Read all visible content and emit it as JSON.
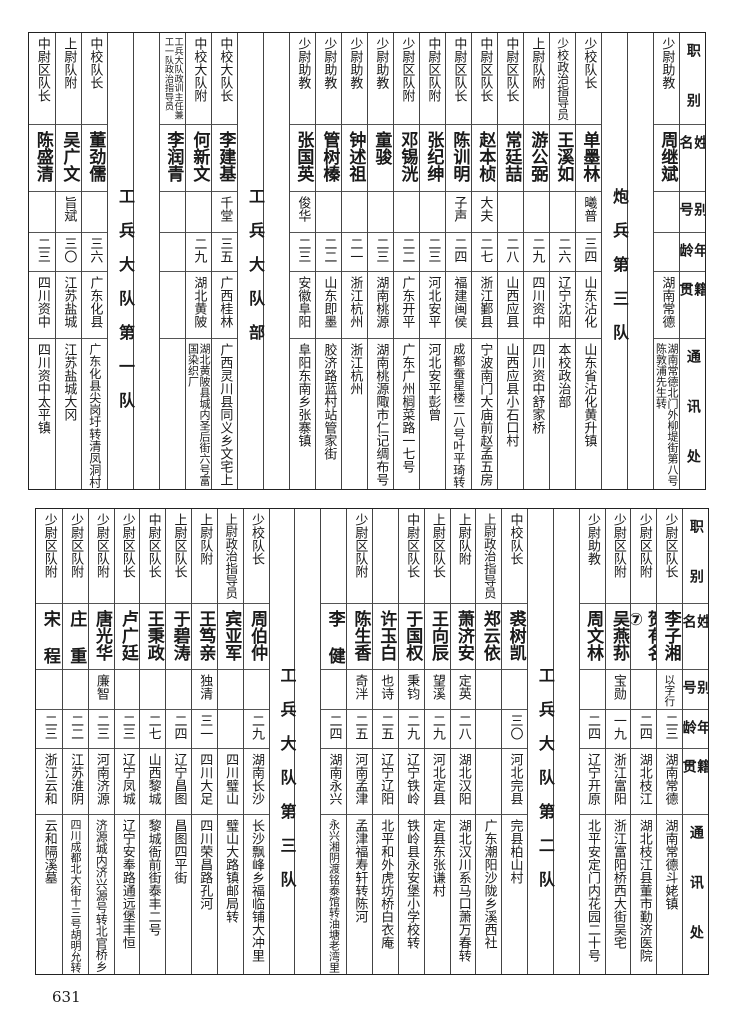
{
  "headers": [
    "职 别",
    "姓 名",
    "别号",
    "年龄",
    "籍 贯",
    "通 讯 处"
  ],
  "top": {
    "groups": [
      {
        "label": "",
        "members": [
          {
            "position": "少尉助教",
            "name": "周继斌",
            "alias": "",
            "age": "",
            "native": "湖南常德",
            "address": "湖南常德北门外柳堤街第八号陈敦浦先生转"
          }
        ]
      },
      {
        "label": "炮兵第三队",
        "members": [
          {
            "position": "少校队长",
            "name": "单墨林",
            "alias": "曦普",
            "age": "三四",
            "native": "山东沾化",
            "address": "山东省沾化黄升镇"
          },
          {
            "position": "少校政治指导员",
            "name": "王溪如",
            "alias": "",
            "age": "二六",
            "native": "辽宁沈阳",
            "address": "本校政治部"
          },
          {
            "position": "上尉队附",
            "name": "游公弼",
            "alias": "",
            "age": "二九",
            "native": "四川资中",
            "address": "四川资中舒家桥"
          },
          {
            "position": "中尉区队长",
            "name": "常廷喆",
            "alias": "",
            "age": "二八",
            "native": "山西应县",
            "address": "山西应县小石口村"
          },
          {
            "position": "中尉区队长",
            "name": "赵本桢",
            "alias": "大夫",
            "age": "二七",
            "native": "浙江鄞县",
            "address": "宁波南门大庙前赵孟五房"
          },
          {
            "position": "中尉区队长",
            "name": "陈训明",
            "alias": "子声",
            "age": "二四",
            "native": "福建闽侯",
            "address": "成都蚕星楼二八号叶平琦转"
          },
          {
            "position": "中尉区队附",
            "name": "张纪绅",
            "alias": "",
            "age": "二三",
            "native": "河北安平",
            "address": "河北安平彭曾"
          },
          {
            "position": "少尉区队附",
            "name": "邓锡洸",
            "alias": "",
            "age": "二二",
            "native": "广东开平",
            "address": "广东广州榈菜路一七号"
          },
          {
            "position": "少尉助教",
            "name": "童骏",
            "alias": "",
            "age": "二三",
            "native": "湖南桃源",
            "address": "湖南桃源陬市仁记绸布号"
          },
          {
            "position": "少尉助教",
            "name": "钟述祖",
            "alias": "",
            "age": "二一",
            "native": "浙江杭州",
            "address": "浙江杭州"
          },
          {
            "position": "少尉助教",
            "name": "管树榛",
            "alias": "",
            "age": "二二",
            "native": "山东即墨",
            "address": "胶济路蓝村站管家街"
          },
          {
            "position": "少尉助教",
            "name": "张国英",
            "alias": "俊华",
            "age": "二三",
            "native": "安徽阜阳",
            "address": "阜阳东南乡张寨镇"
          }
        ]
      },
      {
        "label": "工兵大队部",
        "members": [
          {
            "position": "中校大队长",
            "name": "李建基",
            "alias": "千堂",
            "age": "三五",
            "native": "广西桂林",
            "address": "广西灵川县同义乡文宅上"
          },
          {
            "position": "中校大队附",
            "name": "何新文",
            "alias": "",
            "age": "二九",
            "native": "湖北黄陂",
            "address": "湖北黄陂县城内圣后街六号富国染织厂"
          },
          {
            "position": "工兵大队政训主任兼工一队政治指导员",
            "name": "李润青",
            "alias": "",
            "age": "",
            "native": "",
            "address": ""
          }
        ]
      },
      {
        "label": "工兵大队第一队",
        "members": [
          {
            "position": "中校队长",
            "name": "董劲儒",
            "alias": "",
            "age": "三六",
            "native": "广东化县",
            "address": "广东化县尖岗圩转清凤洞村"
          },
          {
            "position": "上尉队附",
            "name": "吴广文",
            "alias": "旨斌",
            "age": "三〇",
            "native": "江苏盐城",
            "address": "江苏盐城大冈"
          },
          {
            "position": "中尉区队长",
            "name": "陈盛清",
            "alias": "",
            "age": "二三",
            "native": "四川资中",
            "address": "四川资中太平镇"
          }
        ]
      }
    ]
  },
  "bottom": {
    "groups": [
      {
        "label": "",
        "members": [
          {
            "position": "少尉区队长",
            "name": "李子湘",
            "alias": "以字行",
            "age": "二三",
            "native": "湖南常德",
            "address": "湖南常德斗姥镇"
          },
          {
            "position": "少尉区队附",
            "name": "贺有名⑦",
            "alias": "",
            "age": "二四",
            "native": "湖北枝江",
            "address": "湖北枝江县董市勤济医院"
          },
          {
            "position": "少尉区队附",
            "name": "吴燕荪",
            "alias": "宝勋",
            "age": "一九",
            "native": "浙江富阳",
            "address": "浙江富阳桥西大街吴宅"
          },
          {
            "position": "少尉助教",
            "name": "周文林",
            "alias": "",
            "age": "二四",
            "native": "辽宁开原",
            "address": "北平安定门内花园二十号"
          }
        ]
      },
      {
        "label": "工兵大队第二队",
        "members": [
          {
            "position": "中校队长",
            "name": "裘树凯",
            "alias": "",
            "age": "三〇",
            "native": "河北完县",
            "address": "完县柏山村"
          },
          {
            "position": "上尉政治指导员",
            "name": "郑云依",
            "alias": "",
            "age": "",
            "native": "",
            "address": "广东潮阳沙陇乡溪西社"
          },
          {
            "position": "上尉队附",
            "name": "萧济安",
            "alias": "定英",
            "age": "二八",
            "native": "湖北汉阳",
            "address": "湖北汉川系马口萧万春转"
          },
          {
            "position": "上尉区队长",
            "name": "王向辰",
            "alias": "望溪",
            "age": "二九",
            "native": "河北定县",
            "address": "定县东张谦村"
          },
          {
            "position": "中尉区队长",
            "name": "于国权",
            "alias": "秉钧",
            "age": "二九",
            "native": "辽宁铁岭",
            "address": "铁岭县永安堡小学校转"
          },
          {
            "position": "",
            "name": "许玉白",
            "alias": "也诗",
            "age": "二五",
            "native": "辽宁辽阳",
            "address": "北平和外虎坊桥白衣庵"
          },
          {
            "position": "少尉区队附",
            "name": "陈生香",
            "alias": "奇泮",
            "age": "二五",
            "native": "河南孟津",
            "address": "孟津福寿轩转陈河"
          },
          {
            "position": "",
            "name": "李 健",
            "alias": "",
            "age": "二四",
            "native": "湖南永兴",
            "address": "永兴湘阴渡铭泰馆转油塘老湾里"
          }
        ]
      },
      {
        "label": "工兵大队第三队",
        "members": [
          {
            "position": "少校队长",
            "name": "周伯仲",
            "alias": "",
            "age": "二九",
            "native": "湖南长沙",
            "address": "长沙飘峰乡福临铺大冲里"
          },
          {
            "position": "上尉政治指导员",
            "name": "宾亚军",
            "alias": "",
            "age": "",
            "native": "四川璧山",
            "address": "璧山大路镇邮局转"
          },
          {
            "position": "上尉队附",
            "name": "王笃亲",
            "alias": "独清",
            "age": "三一",
            "native": "四川大足",
            "address": "四川荣昌路孔河"
          },
          {
            "position": "上尉区队长",
            "name": "于碧涛",
            "alias": "",
            "age": "二四",
            "native": "辽宁昌图",
            "address": "昌图四平街"
          },
          {
            "position": "中尉区队长",
            "name": "王秉政",
            "alias": "",
            "age": "二七",
            "native": "山西黎城",
            "address": "黎城衙前街泰丰二号"
          },
          {
            "position": "少尉区队长",
            "name": "卢广廷",
            "alias": "",
            "age": "二三",
            "native": "辽宁凤城",
            "address": "辽宁安奉路通远堡丰恒"
          },
          {
            "position": "少尉区队附",
            "name": "唐光华",
            "alias": "廉智",
            "age": "二三",
            "native": "河南济源",
            "address": "济源城内济兴源号转北官桥乡"
          },
          {
            "position": "少尉区队附",
            "name": "庄 重",
            "alias": "",
            "age": "二二",
            "native": "江苏淮阴",
            "address": "四川成都北大街十三号胡明允转"
          },
          {
            "position": "少尉区队附",
            "name": "宋 程",
            "alias": "",
            "age": "二三",
            "native": "浙江云和",
            "address": "云和隔溪墓"
          }
        ]
      }
    ]
  },
  "page_number": "631"
}
